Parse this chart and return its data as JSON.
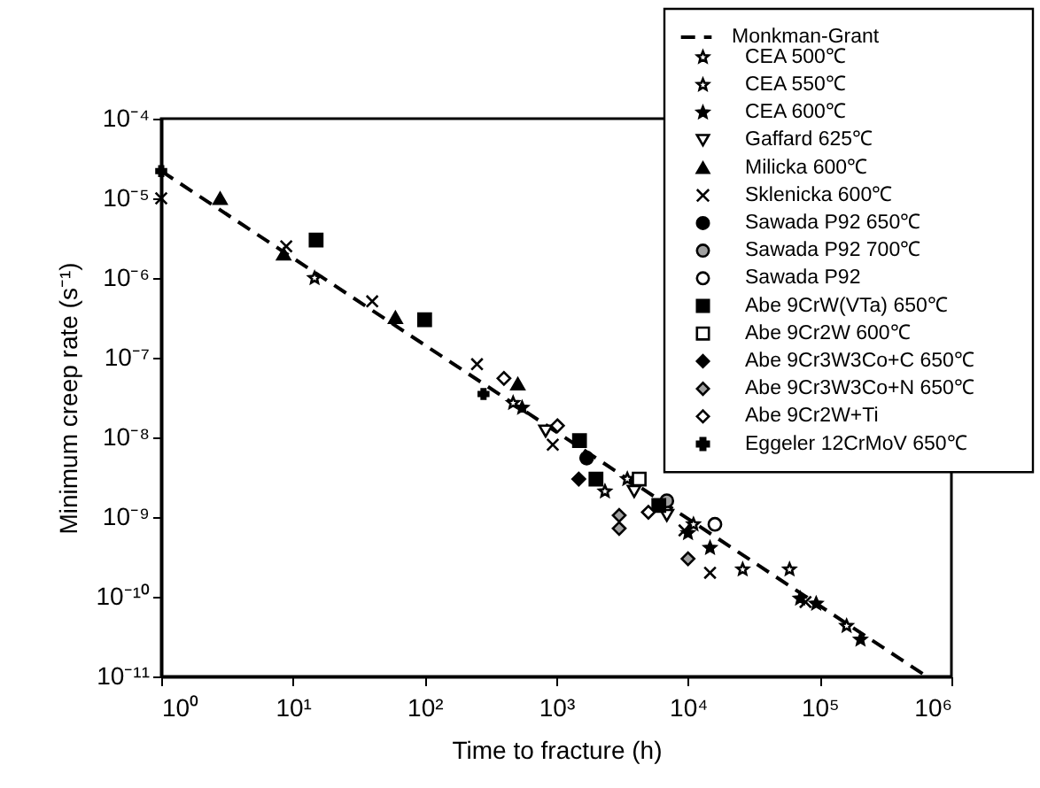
{
  "chart_data": {
    "type": "scatter",
    "xlabel": "Time to fracture (h)",
    "ylabel": "Minimum creep rate (s⁻¹)",
    "log": "xy",
    "grid": false,
    "legend": "top right",
    "xlim": [
      1,
      1000000
    ],
    "ylim": [
      1e-11,
      0.0001
    ],
    "xticks": [
      {
        "value": 1,
        "label": "10⁰"
      },
      {
        "value": 10,
        "label": "10¹"
      },
      {
        "value": 100,
        "label": "10²"
      },
      {
        "value": 1000,
        "label": "10³"
      },
      {
        "value": 10000,
        "label": "10⁴"
      },
      {
        "value": 100000,
        "label": "10⁵"
      },
      {
        "value": 1000000,
        "label": "10⁶"
      }
    ],
    "yticks": [
      {
        "value": 1e-11,
        "label": "10⁻¹¹"
      },
      {
        "value": 1e-10,
        "label": "10⁻¹⁰"
      },
      {
        "value": 1e-09,
        "label": "10⁻⁹"
      },
      {
        "value": 1e-08,
        "label": "10⁻⁸"
      },
      {
        "value": 1e-07,
        "label": "10⁻⁷"
      },
      {
        "value": 1e-06,
        "label": "10⁻⁶"
      },
      {
        "value": 1e-05,
        "label": "10⁻⁵"
      },
      {
        "value": 0.0001,
        "label": "10⁻⁴"
      }
    ],
    "series": [
      {
        "name": "Monkman-Grant",
        "type": "line",
        "line_style": "dashed",
        "color": "#000000",
        "x": [
          1,
          650000
        ],
        "values": [
          2.2e-05,
          1e-11
        ]
      },
      {
        "name": "CEA 500℃",
        "marker": "star",
        "color": "#ffffff",
        "x": [
          14.6,
          2340,
          3460,
          11000,
          26000
        ],
        "values": [
          1e-06,
          2.1e-09,
          3e-09,
          8.1e-10,
          2.2e-10
        ]
      },
      {
        "name": "CEA 550℃",
        "marker": "star",
        "color": "#ffffff",
        "x": [
          470,
          59000,
          160000
        ],
        "values": [
          2.7e-08,
          2.2e-10,
          4.3e-11
        ]
      },
      {
        "name": "CEA 600℃",
        "marker": "star",
        "color": "#000000",
        "x": [
          550,
          10000,
          14700,
          71000,
          94000,
          204000
        ],
        "values": [
          2.35e-08,
          6.3e-10,
          4.1e-10,
          9.5e-11,
          8.2e-11,
          2.9e-11
        ]
      },
      {
        "name": "Gaffard 625℃",
        "marker": "triangle-down",
        "color": "#ffffff",
        "x": [
          830,
          3900,
          6900
        ],
        "values": [
          1.2e-08,
          2.1e-09,
          1.05e-09
        ]
      },
      {
        "name": "Milicka 600℃",
        "marker": "triangle",
        "color": "#000000",
        "x": [
          2.8,
          8.5,
          60,
          510
        ],
        "values": [
          1e-05,
          2e-06,
          3.2e-07,
          4.7e-08
        ]
      },
      {
        "name": "Sklenicka 600℃",
        "marker": "cross",
        "color": "#000000",
        "x": [
          1,
          8.9,
          40,
          250,
          940,
          9400,
          14700,
          78000
        ],
        "values": [
          1e-05,
          2.5e-06,
          5.1e-07,
          8.3e-08,
          8.1e-09,
          6.8e-10,
          2e-10,
          8.6e-11
        ]
      },
      {
        "name": "Sawada P92 650℃",
        "marker": "circle",
        "color": "#000000",
        "x": [
          1700
        ],
        "values": [
          5.5e-09
        ]
      },
      {
        "name": "Sawada P92 700℃",
        "marker": "circle",
        "color": "#a0a0a0",
        "x": [
          6900
        ],
        "values": [
          1.6e-09
        ]
      },
      {
        "name": "Sawada P92",
        "marker": "circle",
        "color": "#ffffff",
        "x": [
          16000
        ],
        "values": [
          8.1e-10
        ]
      },
      {
        "name": "Abe 9CrW(VTa) 650℃",
        "marker": "square",
        "color": "#000000",
        "x": [
          15,
          100,
          1500,
          2000,
          6000
        ],
        "values": [
          3e-06,
          3e-07,
          9.1e-09,
          3e-09,
          1.4e-09
        ]
      },
      {
        "name": "Abe 9Cr2W 600℃",
        "marker": "square",
        "color": "#ffffff",
        "x": [
          4260
        ],
        "values": [
          3e-09
        ]
      },
      {
        "name": "Abe 9Cr3W3Co+C 650℃",
        "marker": "diamond",
        "color": "#000000",
        "x": [
          1480
        ],
        "values": [
          3e-09
        ]
      },
      {
        "name": "Abe 9Cr3W3Co+N 650℃",
        "marker": "diamond",
        "color": "#a0a0a0",
        "x": [
          3000,
          3000,
          10000
        ],
        "values": [
          1.05e-09,
          7.2e-10,
          3e-10
        ]
      },
      {
        "name": "Abe 9Cr2W+Ti",
        "marker": "diamond",
        "color": "#ffffff",
        "x": [
          400,
          1020,
          5000
        ],
        "values": [
          5.5e-08,
          1.4e-08,
          1.15e-09
        ]
      },
      {
        "name": "Eggeler 12CrMoV 650℃",
        "marker": "plus",
        "color": "#000000",
        "x": [
          1,
          280
        ],
        "values": [
          2.2e-05,
          3.5e-08
        ]
      }
    ]
  }
}
